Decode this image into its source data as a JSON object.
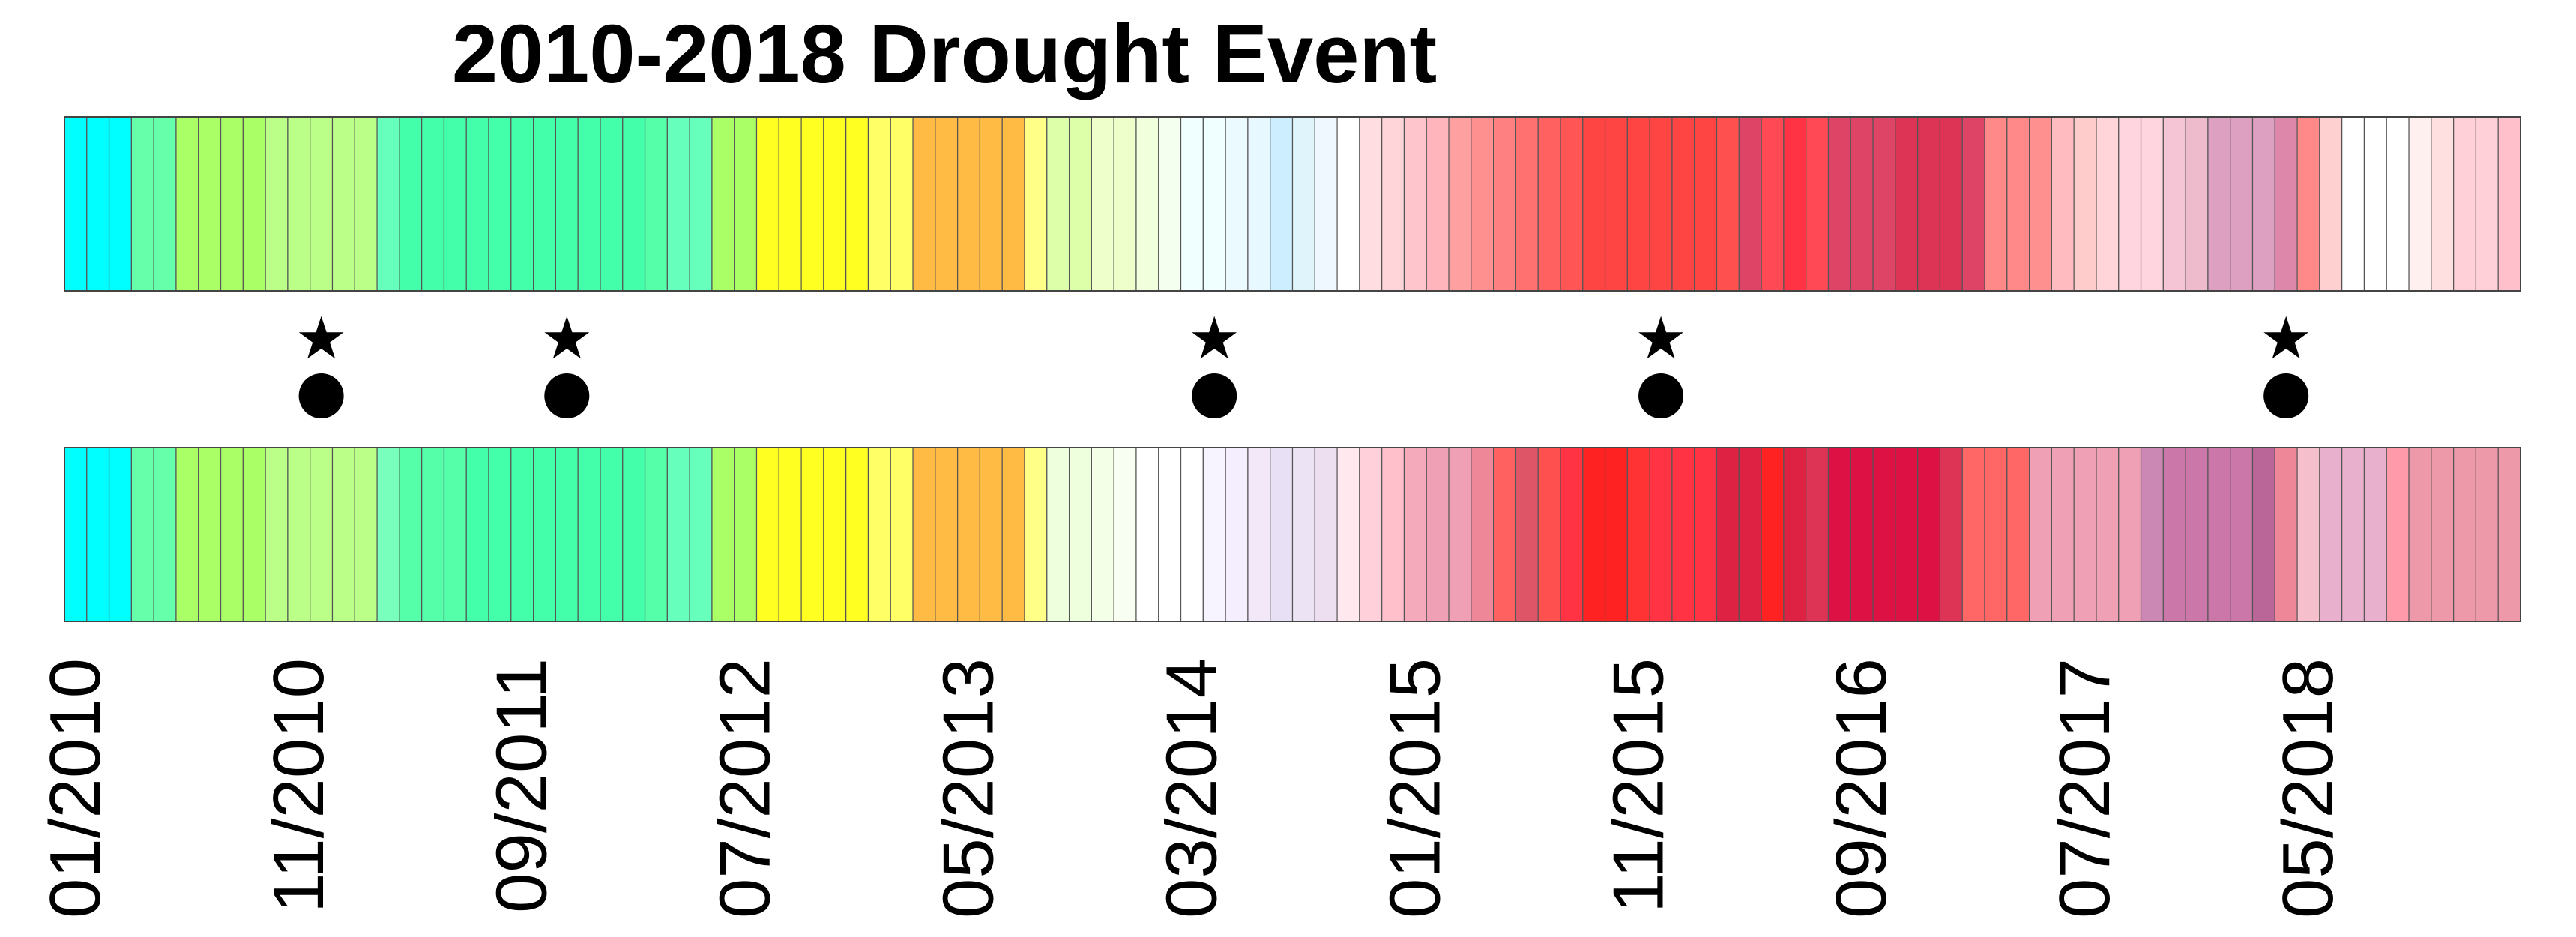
{
  "chart_data": {
    "type": "heatmap",
    "title": "2010-2018 Drought Event",
    "months_per_cell": 1,
    "tick_every_months": 10,
    "tick_labels": [
      "01/2010",
      "11/2010",
      "09/2011",
      "07/2012",
      "05/2013",
      "03/2014",
      "01/2015",
      "11/2015",
      "09/2016",
      "07/2017",
      "05/2018"
    ],
    "markers": {
      "star_symbol": "★",
      "circle_symbol": "●",
      "months": [
        "12/2010",
        "11/2011",
        "04/2014",
        "12/2015",
        "04/2018"
      ]
    },
    "series": [
      {
        "row": "top",
        "colors": [
          "#00ffff",
          "#00ffff",
          "#00ffff",
          "#66ffaa",
          "#66ffaa",
          "#aaff66",
          "#aaff66",
          "#aaff66",
          "#aaff66",
          "#bbff88",
          "#bbff88",
          "#bbff88",
          "#bbff88",
          "#bbff88",
          "#66ffbb",
          "#44ffaa",
          "#44ffaa",
          "#44ffaa",
          "#44ffaa",
          "#44ffaa",
          "#44ffaa",
          "#44ffaa",
          "#44ffaa",
          "#44ffaa",
          "#44ffaa",
          "#44ffaa",
          "#55ffaa",
          "#66ffbb",
          "#66ffbb",
          "#aaff66",
          "#aaff66",
          "#ffff22",
          "#ffff22",
          "#ffff22",
          "#ffff22",
          "#ffff22",
          "#ffff66",
          "#ffff66",
          "#ffbb44",
          "#ffbb44",
          "#ffbb44",
          "#ffbb44",
          "#ffbb44",
          "#ffff88",
          "#ddffaa",
          "#ddffaa",
          "#eeffcc",
          "#eeffcc",
          "#f2ffdd",
          "#f4fff0",
          "#f0ffff",
          "#f0ffff",
          "#eafaff",
          "#e8f8ff",
          "#cceeff",
          "#dff4fb",
          "#f0f8ff",
          "#ffffff",
          "#ffdde0",
          "#ffd5da",
          "#ffc5cc",
          "#ffb5bb",
          "#ffa0a0",
          "#ff9090",
          "#ff8080",
          "#ff7070",
          "#ff6060",
          "#ff5555",
          "#ff4444",
          "#ff4444",
          "#ff4444",
          "#ff4444",
          "#ff4444",
          "#ff4444",
          "#ff5050",
          "#dd4466",
          "#ff4a55",
          "#ff3344",
          "#ff4a55",
          "#dd4466",
          "#dd4466",
          "#dd4466",
          "#dd3355",
          "#dd3355",
          "#dd3355",
          "#dd4466",
          "#ff8888",
          "#ff8888",
          "#ff9090",
          "#ffbbc0",
          "#ffcccc",
          "#ffd5da",
          "#ffd5e0",
          "#ffd5e0",
          "#f5c5d5",
          "#eebbcc",
          "#dda0c0",
          "#dda0c0",
          "#dda0c0",
          "#dd88aa",
          "#ff8888",
          "#ffd0d0",
          "#ffffff",
          "#ffffff",
          "#ffffff",
          "#fff0f0",
          "#ffe0e0",
          "#ffd0d8",
          "#ffd0d8",
          "#ffc0cc"
        ]
      },
      {
        "row": "bottom",
        "colors": [
          "#00ffff",
          "#00ffff",
          "#00ffff",
          "#66ffaa",
          "#66ffaa",
          "#aaff66",
          "#aaff66",
          "#aaff66",
          "#aaff66",
          "#bbff88",
          "#bbff88",
          "#bbff88",
          "#bbff88",
          "#bbff88",
          "#77ffbb",
          "#55ffaa",
          "#55ffaa",
          "#55ffaa",
          "#44ffaa",
          "#44ffaa",
          "#44ffaa",
          "#44ffaa",
          "#44ffaa",
          "#44ffaa",
          "#44ffaa",
          "#44ffaa",
          "#55ffaa",
          "#66ffbb",
          "#66ffbb",
          "#aaff66",
          "#aaff66",
          "#ffff22",
          "#ffff22",
          "#ffff22",
          "#ffff22",
          "#ffff22",
          "#ffff66",
          "#ffff66",
          "#ffbb44",
          "#ffbb44",
          "#ffbb44",
          "#ffbb44",
          "#ffbb44",
          "#ffff88",
          "#eeffdd",
          "#eeffdd",
          "#f4ffe8",
          "#f8fff2",
          "#ffffff",
          "#ffffff",
          "#ffffff",
          "#f8f4ff",
          "#f4eeff",
          "#f2e8f8",
          "#e8e0f4",
          "#ece4f4",
          "#eedff0",
          "#ffe8ee",
          "#ffd0da",
          "#ffc0cc",
          "#f4aabb",
          "#f0a0b4",
          "#f0a0b4",
          "#ee8899",
          "#ff6060",
          "#dd5566",
          "#ff5050",
          "#ff3344",
          "#ff2222",
          "#ff2222",
          "#ff3333",
          "#ff3344",
          "#ff3344",
          "#ff3344",
          "#dd2244",
          "#dd2244",
          "#ff2222",
          "#dd2244",
          "#dd3355",
          "#dd1144",
          "#dd1144",
          "#dd1144",
          "#dd1144",
          "#dd1144",
          "#dd3355",
          "#ff6666",
          "#ff6666",
          "#ff6666",
          "#f0a0b4",
          "#f0a0b4",
          "#f0a0b4",
          "#f0a0b4",
          "#f0a0b4",
          "#cc88b4",
          "#cc77aa",
          "#cc77aa",
          "#cc77aa",
          "#cc77aa",
          "#bb6699",
          "#ee8899",
          "#f5c0cc",
          "#e8b0cc",
          "#e8b0cc",
          "#e8b0cc",
          "#ff9aaa",
          "#ee99aa",
          "#ee99aa",
          "#ee99aa",
          "#ee99aa",
          "#ee99aa"
        ]
      }
    ]
  }
}
